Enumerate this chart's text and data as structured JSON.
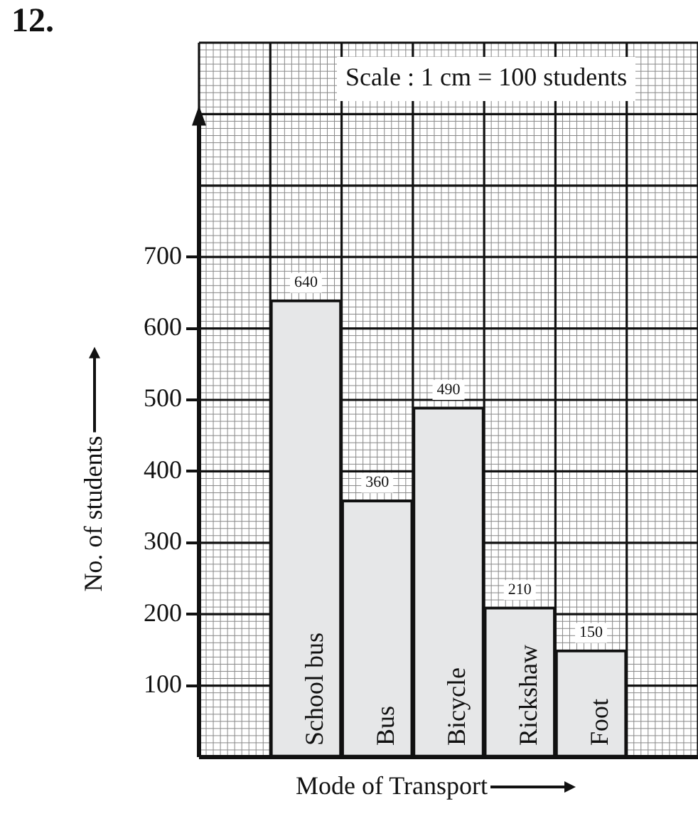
{
  "chart_data": {
    "type": "bar",
    "title": "12.",
    "xlabel": "Mode of Transport",
    "ylabel": "No. of students",
    "annotations": [
      "Scale : 1 cm = 100 students"
    ],
    "categories": [
      null,
      "School bus",
      "Bus",
      "Bicycle",
      "Rickshaw",
      "Foot",
      null
    ],
    "values": [
      null,
      640,
      360,
      490,
      210,
      150,
      null
    ],
    "color": "#e6e7e8",
    "ylim": [
      0,
      1000
    ],
    "yticks": [
      100,
      200,
      300,
      400,
      500,
      600,
      700
    ],
    "grid": true,
    "data_labels": true,
    "legend": false
  }
}
